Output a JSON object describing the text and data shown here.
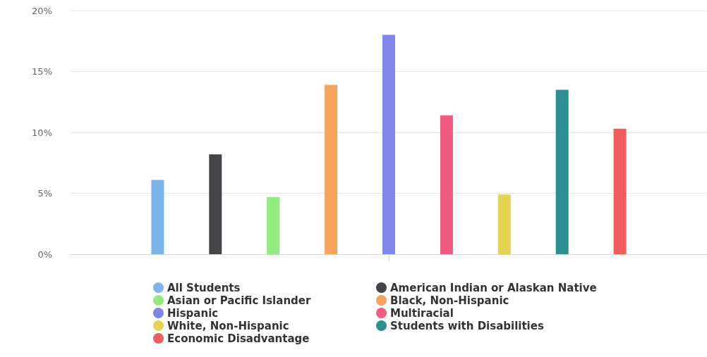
{
  "chart_data": {
    "type": "bar",
    "categories": [
      null
    ],
    "series": [
      {
        "name": "All Students",
        "color": "#7cb5ec",
        "values": [
          6.1
        ]
      },
      {
        "name": "American Indian or Alaskan Native",
        "color": "#434348",
        "values": [
          8.2
        ]
      },
      {
        "name": "Asian or Pacific Islander",
        "color": "#90ed7d",
        "values": [
          4.7
        ]
      },
      {
        "name": "Black, Non-Hispanic",
        "color": "#f7a35c",
        "values": [
          13.9
        ]
      },
      {
        "name": "Hispanic",
        "color": "#8085e9",
        "values": [
          18.0
        ]
      },
      {
        "name": "Multiracial",
        "color": "#f15c80",
        "values": [
          11.4
        ]
      },
      {
        "name": "White, Non-Hispanic",
        "color": "#e4d354",
        "values": [
          4.9
        ]
      },
      {
        "name": "Students with Disabilities",
        "color": "#2b908f",
        "values": [
          13.5
        ]
      },
      {
        "name": "Economic Disadvantage",
        "color": "#f45b5b",
        "values": [
          10.3
        ]
      }
    ],
    "ylim": [
      0,
      20
    ],
    "yticks": [
      {
        "value": 0,
        "label": "0%"
      },
      {
        "value": 5,
        "label": "5%"
      },
      {
        "value": 10,
        "label": "10%"
      },
      {
        "value": 15,
        "label": "15%"
      },
      {
        "value": 20,
        "label": "20%"
      }
    ],
    "grid": "y",
    "legend": "bottom"
  }
}
